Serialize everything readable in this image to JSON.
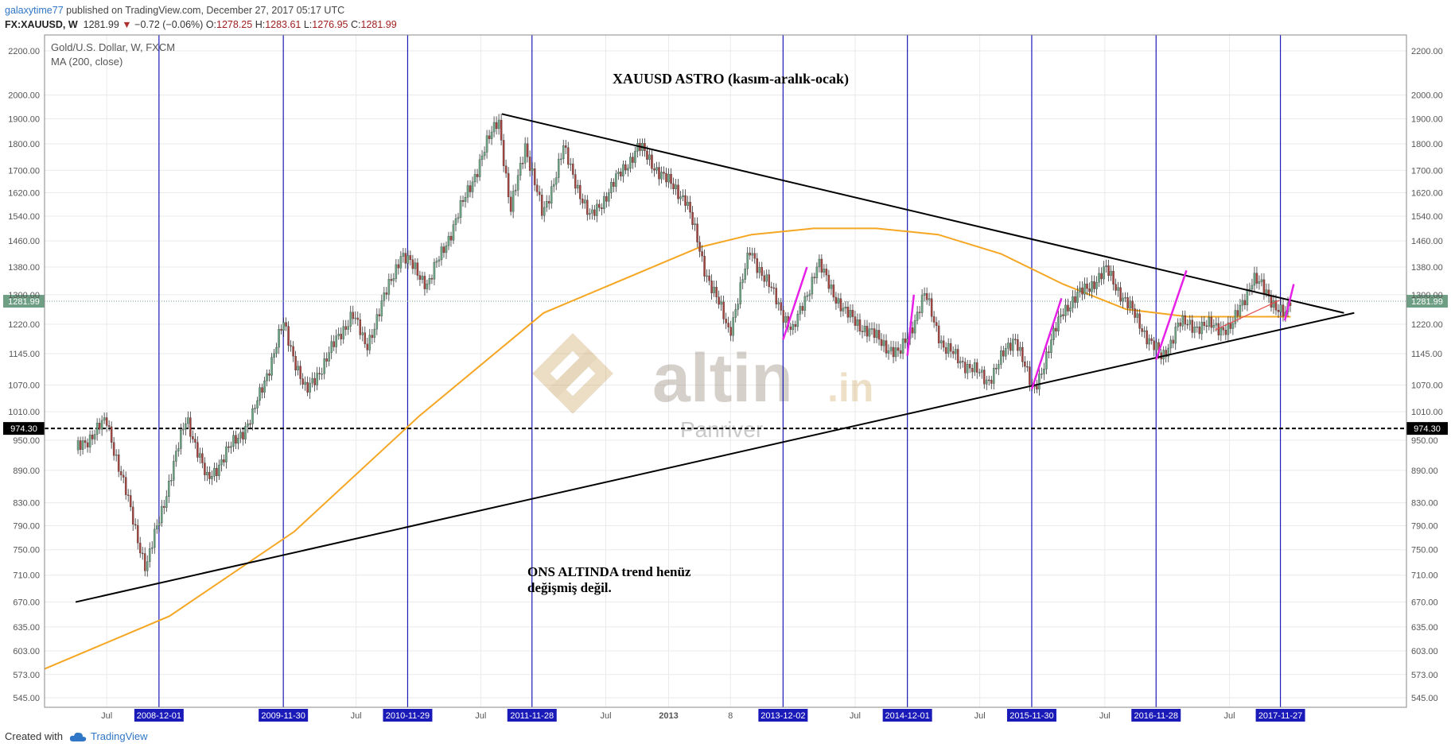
{
  "header": {
    "author": "galaxytime77",
    "published": " published on TradingView.com, December 27, 2017 05:17 UTC",
    "symbol": "FX:XAUUSD, W",
    "price": "1281.99",
    "change": "−0.72 (−0.06%)",
    "o_label": "O:",
    "o_value": "1278.25",
    "h_label": "H:",
    "h_value": "1283.61",
    "l_label": "L:",
    "l_value": "1276.95",
    "c_label": "C:",
    "c_value": "1281.99"
  },
  "footer": {
    "created": "Created with",
    "brand": "TradingView"
  },
  "chart_data": {
    "type": "line",
    "title": "XAUUSD  ASTRO (kasım-aralık-ocak)",
    "legend": [
      "Gold/U.S. Dollar, W, FXCM",
      "MA (200, close)"
    ],
    "annotation": [
      "ONS ALTINDA trend henüz",
      "değişmiş değil."
    ],
    "watermark": {
      "brand": "altin",
      "suffix": ".in",
      "sub": "Panriver"
    },
    "scale": "log",
    "ylim": [
      545,
      2200
    ],
    "y_ticks": [
      "2200.00",
      "2000.00",
      "1900.00",
      "1800.00",
      "1700.00",
      "1620.00",
      "1540.00",
      "1460.00",
      "1380.00",
      "1300.00",
      "1220.00",
      "1145.00",
      "1070.00",
      "1010.00",
      "950.00",
      "890.00",
      "830.00",
      "790.00",
      "750.00",
      "710.00",
      "670.00",
      "635.00",
      "603.00",
      "573.00",
      "545.00"
    ],
    "x_ticks": [
      {
        "label": "Jul",
        "date": "2008-07-01"
      },
      {
        "label": "Jul",
        "date": "2010-07-01"
      },
      {
        "label": "Jul",
        "date": "2011-07-01"
      },
      {
        "label": "Jul",
        "date": "2012-07-01"
      },
      {
        "label": "2013",
        "date": "2013-01-01"
      },
      {
        "label": "8",
        "date": "2013-07-01"
      },
      {
        "label": "Jul",
        "date": "2014-07-01"
      },
      {
        "label": "Jul",
        "date": "2015-07-01"
      },
      {
        "label": "Jul",
        "date": "2016-07-01"
      },
      {
        "label": "Jul",
        "date": "2017-07-01"
      }
    ],
    "vertical_markers": [
      "2008-12-01",
      "2009-11-30",
      "2010-11-29",
      "2011-11-28",
      "2013-12-02",
      "2014-12-01",
      "2015-11-30",
      "2016-11-28",
      "2017-11-27"
    ],
    "horizontal_level": {
      "value": 974.3,
      "label": "974.30"
    },
    "last_price": {
      "value": 1281.99,
      "label": "1281.99"
    },
    "colors": {
      "up": "#6ba583",
      "down": "#a5443f",
      "ma": "#f5a623",
      "marker": "#1a1ab8",
      "level": "#000000",
      "pink": "#e620e6",
      "trend": "#000000",
      "price_badge": "#6e9f84"
    },
    "series": [
      {
        "name": "Gold/U.S. Dollar, W, FXCM",
        "x": [
          "2008-04-01",
          "2008-07-01",
          "2008-10-24",
          "2009-02-20",
          "2009-04-20",
          "2009-09-01",
          "2009-11-30",
          "2010-02-05",
          "2010-06-20",
          "2010-07-30",
          "2010-11-09",
          "2011-01-28",
          "2011-04-28",
          "2011-08-22",
          "2011-09-26",
          "2011-11-08",
          "2011-12-29",
          "2012-02-28",
          "2012-05-16",
          "2012-10-05",
          "2012-12-28",
          "2013-02-20",
          "2013-04-15",
          "2013-06-28",
          "2013-08-28",
          "2013-12-31",
          "2014-03-14",
          "2014-06-01",
          "2014-11-07",
          "2015-01-22",
          "2015-03-17",
          "2015-07-24",
          "2015-10-14",
          "2015-12-03",
          "2016-03-01",
          "2016-07-06",
          "2016-12-15",
          "2017-01-31",
          "2017-07-07",
          "2017-09-08",
          "2017-12-12",
          "2017-12-27"
        ],
        "values": [
          930,
          990,
          720,
          1000,
          870,
          1000,
          1220,
          1050,
          1250,
          1160,
          1420,
          1330,
          1550,
          1910,
          1550,
          1800,
          1540,
          1780,
          1530,
          1790,
          1660,
          1600,
          1380,
          1200,
          1430,
          1200,
          1390,
          1250,
          1140,
          1300,
          1160,
          1080,
          1190,
          1050,
          1260,
          1370,
          1130,
          1220,
          1210,
          1350,
          1240,
          1282
        ]
      },
      {
        "name": "MA (200, close)",
        "x": [
          "2008-01-01",
          "2009-01-01",
          "2010-01-01",
          "2011-01-01",
          "2012-01-01",
          "2013-04-01",
          "2013-09-01",
          "2014-03-01",
          "2014-09-01",
          "2015-03-01",
          "2015-09-01",
          "2016-03-01",
          "2016-09-01",
          "2017-03-01",
          "2017-12-27"
        ],
        "values": [
          580,
          650,
          780,
          1000,
          1250,
          1440,
          1480,
          1500,
          1500,
          1480,
          1420,
          1330,
          1260,
          1240,
          1240
        ]
      }
    ],
    "trendlines": [
      {
        "x1": "2011-09-01",
        "y1": 1920,
        "x2": "2018-06-01",
        "y2": 1250
      },
      {
        "x1": "2008-04-01",
        "y1": 670,
        "x2": "2018-07-01",
        "y2": 1250
      }
    ]
  }
}
